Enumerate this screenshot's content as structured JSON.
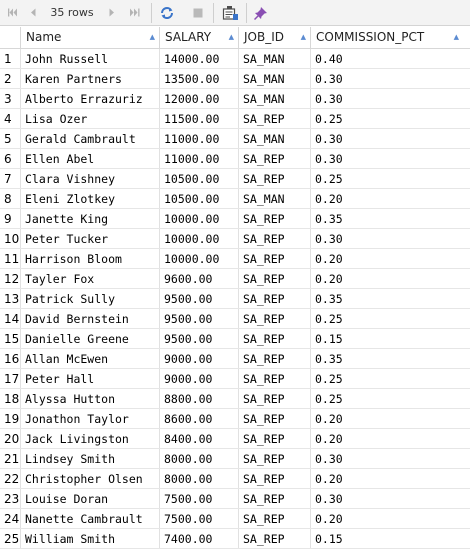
{
  "toolbar": {
    "rows_label": "35 rows",
    "icons": [
      "first-page-icon",
      "previous-page-icon",
      "next-page-icon",
      "last-page-icon",
      "refresh-icon",
      "stop-icon",
      "export-icon",
      "pin-icon"
    ]
  },
  "columns": [
    "Name",
    "SALARY",
    "JOB_ID",
    "COMMISSION_PCT"
  ],
  "rows": [
    {
      "n": "1",
      "name": "John Russell",
      "salary": "14000.00",
      "job": "SA_MAN",
      "pct": "0.40"
    },
    {
      "n": "2",
      "name": "Karen Partners",
      "salary": "13500.00",
      "job": "SA_MAN",
      "pct": "0.30"
    },
    {
      "n": "3",
      "name": "Alberto Errazuriz",
      "salary": "12000.00",
      "job": "SA_MAN",
      "pct": "0.30"
    },
    {
      "n": "4",
      "name": "Lisa Ozer",
      "salary": "11500.00",
      "job": "SA_REP",
      "pct": "0.25"
    },
    {
      "n": "5",
      "name": "Gerald Cambrault",
      "salary": "11000.00",
      "job": "SA_MAN",
      "pct": "0.30"
    },
    {
      "n": "6",
      "name": "Ellen Abel",
      "salary": "11000.00",
      "job": "SA_REP",
      "pct": "0.30"
    },
    {
      "n": "7",
      "name": "Clara Vishney",
      "salary": "10500.00",
      "job": "SA_REP",
      "pct": "0.25"
    },
    {
      "n": "8",
      "name": "Eleni Zlotkey",
      "salary": "10500.00",
      "job": "SA_MAN",
      "pct": "0.20"
    },
    {
      "n": "9",
      "name": "Janette King",
      "salary": "10000.00",
      "job": "SA_REP",
      "pct": "0.35"
    },
    {
      "n": "10",
      "name": "Peter Tucker",
      "salary": "10000.00",
      "job": "SA_REP",
      "pct": "0.30"
    },
    {
      "n": "11",
      "name": "Harrison Bloom",
      "salary": "10000.00",
      "job": "SA_REP",
      "pct": "0.20"
    },
    {
      "n": "12",
      "name": "Tayler Fox",
      "salary": "9600.00",
      "job": "SA_REP",
      "pct": "0.20"
    },
    {
      "n": "13",
      "name": "Patrick Sully",
      "salary": "9500.00",
      "job": "SA_REP",
      "pct": "0.35"
    },
    {
      "n": "14",
      "name": "David Bernstein",
      "salary": "9500.00",
      "job": "SA_REP",
      "pct": "0.25"
    },
    {
      "n": "15",
      "name": "Danielle Greene",
      "salary": "9500.00",
      "job": "SA_REP",
      "pct": "0.15"
    },
    {
      "n": "16",
      "name": "Allan McEwen",
      "salary": "9000.00",
      "job": "SA_REP",
      "pct": "0.35"
    },
    {
      "n": "17",
      "name": "Peter Hall",
      "salary": "9000.00",
      "job": "SA_REP",
      "pct": "0.25"
    },
    {
      "n": "18",
      "name": "Alyssa Hutton",
      "salary": "8800.00",
      "job": "SA_REP",
      "pct": "0.25"
    },
    {
      "n": "19",
      "name": "Jonathon Taylor",
      "salary": "8600.00",
      "job": "SA_REP",
      "pct": "0.20"
    },
    {
      "n": "20",
      "name": "Jack Livingston",
      "salary": "8400.00",
      "job": "SA_REP",
      "pct": "0.20"
    },
    {
      "n": "21",
      "name": "Lindsey Smith",
      "salary": "8000.00",
      "job": "SA_REP",
      "pct": "0.30"
    },
    {
      "n": "22",
      "name": "Christopher Olsen",
      "salary": "8000.00",
      "job": "SA_REP",
      "pct": "0.20"
    },
    {
      "n": "23",
      "name": "Louise Doran",
      "salary": "7500.00",
      "job": "SA_REP",
      "pct": "0.30"
    },
    {
      "n": "24",
      "name": "Nanette Cambrault",
      "salary": "7500.00",
      "job": "SA_REP",
      "pct": "0.20"
    },
    {
      "n": "25",
      "name": "William Smith",
      "salary": "7400.00",
      "job": "SA_REP",
      "pct": "0.15"
    }
  ]
}
